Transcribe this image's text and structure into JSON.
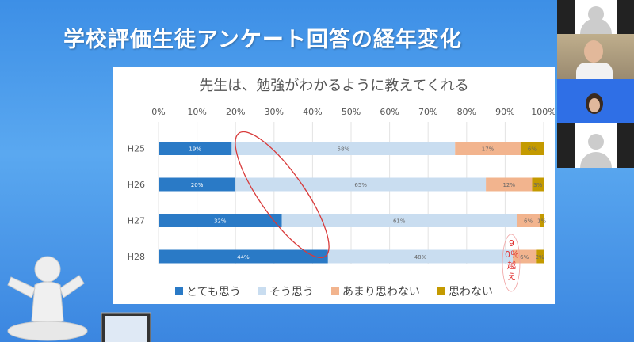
{
  "slide": {
    "title": "学校評価生徒アンケート回答の経年変化"
  },
  "annotation": {
    "text": "90％越え",
    "color": "#e03030"
  },
  "chart_data": {
    "type": "bar",
    "orientation": "horizontal",
    "stacked": "percent",
    "title": "先生は、勉強がわかるように教えてくれる",
    "categories": [
      "H25",
      "H26",
      "H27",
      "H28"
    ],
    "xlim": [
      0,
      100
    ],
    "xticks": [
      "0%",
      "10%",
      "20%",
      "30%",
      "40%",
      "50%",
      "60%",
      "70%",
      "80%",
      "90%",
      "100%"
    ],
    "grid": true,
    "legend": "bottom",
    "series": [
      {
        "name": "とても思う",
        "color": "#2a7ac6",
        "values": [
          19,
          20,
          32,
          44
        ]
      },
      {
        "name": "そう思う",
        "color": "#c9ddf0",
        "values": [
          58,
          65,
          61,
          48
        ]
      },
      {
        "name": "あまり思わない",
        "color": "#f2b48e",
        "values": [
          17,
          12,
          6,
          6
        ]
      },
      {
        "name": "思わない",
        "color": "#c49a00",
        "values": [
          6,
          3,
          1,
          2
        ]
      }
    ]
  },
  "participants": [
    {
      "type": "avatar"
    },
    {
      "type": "video"
    },
    {
      "type": "video"
    },
    {
      "type": "avatar"
    }
  ]
}
